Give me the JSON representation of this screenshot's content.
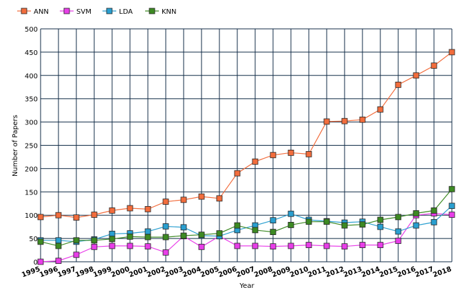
{
  "chart_data": {
    "type": "line",
    "title": "",
    "xlabel": "Year",
    "ylabel": "Number of Papers",
    "ylim": [
      0,
      500
    ],
    "yticks": [
      0,
      50,
      100,
      150,
      200,
      250,
      300,
      350,
      400,
      450,
      500
    ],
    "grid": true,
    "legend_position": "top-left",
    "categories": [
      "1995",
      "1996",
      "1997",
      "1998",
      "1999",
      "2000",
      "2001",
      "2002",
      "2003",
      "2004",
      "2005",
      "2006",
      "2007",
      "2008",
      "2009",
      "2010",
      "2011",
      "2012",
      "2013",
      "2014",
      "2015",
      "2016",
      "2017",
      "2018"
    ],
    "series": [
      {
        "name": "ANN",
        "color": "#f26d3d",
        "values": [
          96,
          100,
          95,
          101,
          110,
          115,
          113,
          129,
          133,
          140,
          136,
          190,
          215,
          229,
          234,
          231,
          301,
          302,
          305,
          327,
          380,
          400,
          421,
          450
        ]
      },
      {
        "name": "SVM",
        "color": "#e83ee8",
        "values": [
          0,
          2,
          15,
          32,
          34,
          34,
          33,
          20,
          55,
          32,
          55,
          34,
          34,
          33,
          34,
          36,
          34,
          33,
          36,
          36,
          45,
          100,
          104,
          101
        ]
      },
      {
        "name": "LDA",
        "color": "#2a9fd0",
        "values": [
          46,
          46,
          43,
          48,
          60,
          61,
          65,
          76,
          74,
          56,
          55,
          68,
          78,
          89,
          103,
          90,
          87,
          84,
          86,
          75,
          65,
          78,
          85,
          120
        ]
      },
      {
        "name": "KNN",
        "color": "#3d8a23",
        "values": [
          43,
          34,
          46,
          46,
          49,
          54,
          53,
          53,
          56,
          58,
          61,
          78,
          68,
          64,
          79,
          86,
          86,
          78,
          80,
          90,
          96,
          104,
          110,
          156
        ]
      }
    ]
  }
}
